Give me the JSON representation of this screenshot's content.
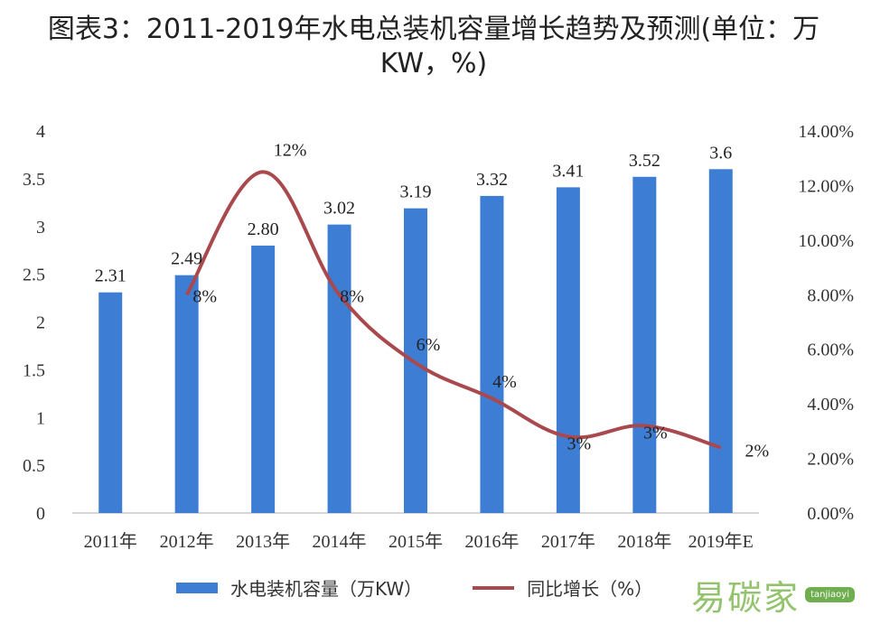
{
  "title": "图表3：2011-2019年水电总装机容量增长趋势及预测(单位：万KW，%)",
  "legend": {
    "bar_label": "水电装机容量（万KW）",
    "line_label": "同比增长（%）"
  },
  "watermark": {
    "text": "易碳家",
    "site": "tanjiaoyi"
  },
  "colors": {
    "bar": "#3d7ed4",
    "line": "#a9494e"
  },
  "chart_data": {
    "type": "bar",
    "title": "图表3：2011-2019年水电总装机容量增长趋势及预测(单位：万KW，%)",
    "categories": [
      "2011年",
      "2012年",
      "2013年",
      "2014年",
      "2015年",
      "2016年",
      "2017年",
      "2018年",
      "2019年E"
    ],
    "series": [
      {
        "name": "水电装机容量（万KW）",
        "type": "bar",
        "axis": "left",
        "values": [
          2.31,
          2.49,
          2.8,
          3.02,
          3.19,
          3.32,
          3.41,
          3.52,
          3.6
        ],
        "labels": [
          "2.31",
          "2.49",
          "2.80",
          "3.02",
          "3.19",
          "3.32",
          "3.41",
          "3.52",
          "3.6"
        ]
      },
      {
        "name": "同比增长（%）",
        "type": "line",
        "axis": "right",
        "values": [
          null,
          8,
          12.5,
          8,
          5.5,
          4.2,
          2.8,
          3.2,
          2.4
        ],
        "labels": [
          "",
          "8%",
          "12%",
          "8%",
          "6%",
          "4%",
          "3%",
          "3%",
          "2%"
        ]
      }
    ],
    "y_left": {
      "range": [
        0,
        4
      ],
      "ticks": [
        "0",
        "0.5",
        "1",
        "1.5",
        "2",
        "2.5",
        "3",
        "3.5",
        "4"
      ]
    },
    "y_right": {
      "range": [
        0,
        14
      ],
      "ticks": [
        "0.00%",
        "2.00%",
        "4.00%",
        "6.00%",
        "8.00%",
        "10.00%",
        "12.00%",
        "14.00%"
      ]
    },
    "grid": false,
    "legend_position": "bottom"
  }
}
